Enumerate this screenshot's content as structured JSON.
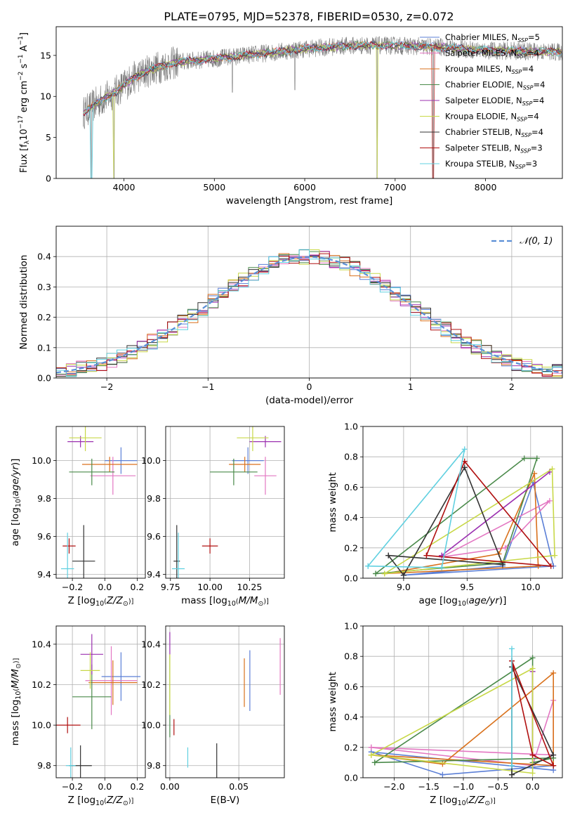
{
  "figure": {
    "title": "PLATE=0795, MJD=52378, FIBERID=0530, z=0.072"
  },
  "colors": {
    "series": [
      "#5b7fd6",
      "#e377c2",
      "#d9711c",
      "#4a8a4a",
      "#9b30b0",
      "#c8d848",
      "#333333",
      "#b01010",
      "#60d0e0"
    ],
    "gray_spectrum": "#7a7a7a",
    "grid": "#b0b0b0",
    "normal_curve": "#5b8fd6"
  },
  "chart_data": [
    {
      "id": "spectrum",
      "type": "line",
      "xlabel": "wavelength [Angstrom, rest frame]",
      "ylabel": "Flux [f",
      "xlim": [
        3250,
        8850
      ],
      "ylim": [
        0,
        18.5
      ],
      "xticks": [
        4000,
        5000,
        6000,
        7000,
        8000
      ],
      "yticks": [
        0,
        5,
        10,
        15
      ],
      "grid": false,
      "legend_position": "top-right",
      "legend": [
        "Chabrier MILES, N_SSP=5",
        "Salpeter MILES, N_SSP=4",
        "Kroupa MILES, N_SSP=4",
        "Chabrier ELODIE, N_SSP=4",
        "Salpeter ELODIE, N_SSP=4",
        "Kroupa ELODIE, N_SSP=4",
        "Chabrier STELIB, N_SSP=4",
        "Salpeter STELIB, N_SSP=3",
        "Kroupa STELIB, N_SSP=3"
      ],
      "continuum": {
        "x": [
          3550,
          3700,
          3900,
          4100,
          4300,
          4600,
          5000,
          5500,
          6000,
          6500,
          7000,
          7500,
          8000,
          8500,
          8850
        ],
        "y": [
          8,
          9.2,
          10.5,
          12.2,
          13.3,
          14.2,
          14.6,
          15.2,
          15.8,
          16.2,
          16.2,
          16.0,
          15.6,
          15.5,
          15.4
        ]
      },
      "noise_amplitude": 1.6,
      "dips": [
        {
          "x": 3640,
          "y": 0
        },
        {
          "x": 3890,
          "y": 0
        },
        {
          "x": 5200,
          "y": 10.5
        },
        {
          "x": 5890,
          "y": 10.8
        },
        {
          "x": 6800,
          "y": 0
        },
        {
          "x": 7420,
          "y": 0
        }
      ]
    },
    {
      "id": "residuals",
      "type": "step-histogram",
      "xlabel": "(data-model)/error",
      "ylabel": "Normed distribution",
      "xlim": [
        -2.5,
        2.5
      ],
      "ylim": [
        0,
        0.5
      ],
      "xticks": [
        -2,
        -1,
        0,
        1,
        2
      ],
      "yticks": [
        0.0,
        0.1,
        0.2,
        0.3,
        0.4
      ],
      "grid": true,
      "legend_position": "top-right",
      "legend": [
        "N(0,1)"
      ],
      "bin_width": 0.1
    },
    {
      "id": "z_age",
      "type": "errorbar",
      "xlabel": "Z [log10(Z/Z⊙)]",
      "ylabel": "age  [log10(age/yr)]",
      "xlim": [
        -0.3,
        0.25
      ],
      "ylim": [
        9.38,
        10.18
      ],
      "xticks": [
        -0.2,
        0.0,
        0.2
      ],
      "yticks": [
        9.4,
        9.6,
        9.8,
        10.0
      ],
      "grid": true,
      "points": [
        {
          "x": 0.1,
          "xerr": 0.1,
          "y": 10.0,
          "yerr": 0.07
        },
        {
          "x": 0.05,
          "xerr": 0.14,
          "y": 9.92,
          "yerr": 0.1
        },
        {
          "x": 0.03,
          "xerr": 0.17,
          "y": 9.98,
          "yerr": 0.04
        },
        {
          "x": -0.08,
          "xerr": 0.14,
          "y": 9.94,
          "yerr": 0.07
        },
        {
          "x": -0.15,
          "xerr": 0.08,
          "y": 10.1,
          "yerr": 0.03
        },
        {
          "x": -0.12,
          "xerr": 0.1,
          "y": 10.12,
          "yerr": 0.07
        },
        {
          "x": -0.13,
          "xerr": 0.07,
          "y": 9.47,
          "yerr": 0.19
        },
        {
          "x": -0.22,
          "xerr": 0.04,
          "y": 9.55,
          "yerr": 0.04
        },
        {
          "x": -0.23,
          "xerr": 0.04,
          "y": 9.43,
          "yerr": 0.19
        }
      ]
    },
    {
      "id": "mass_age",
      "type": "errorbar",
      "xlabel": "mass [log10(M/M⊙)]",
      "ylabel": "",
      "xlim": [
        9.72,
        10.47
      ],
      "ylim": [
        9.38,
        10.18
      ],
      "xticks": [
        9.75,
        10.0,
        10.25
      ],
      "yticks": [
        9.4,
        9.6,
        9.8,
        10.0
      ],
      "grid": true,
      "points": [
        {
          "x": 10.24,
          "xerr": 0.1,
          "y": 10.0,
          "yerr": 0.07
        },
        {
          "x": 10.35,
          "xerr": 0.07,
          "y": 9.92,
          "yerr": 0.1
        },
        {
          "x": 10.22,
          "xerr": 0.1,
          "y": 9.98,
          "yerr": 0.04
        },
        {
          "x": 10.15,
          "xerr": 0.15,
          "y": 9.94,
          "yerr": 0.07
        },
        {
          "x": 10.35,
          "xerr": 0.1,
          "y": 10.1,
          "yerr": 0.03
        },
        {
          "x": 10.27,
          "xerr": 0.1,
          "y": 10.12,
          "yerr": 0.07
        },
        {
          "x": 9.79,
          "xerr": 0.02,
          "y": 9.47,
          "yerr": 0.19
        },
        {
          "x": 10.0,
          "xerr": 0.05,
          "y": 9.55,
          "yerr": 0.04
        },
        {
          "x": 9.8,
          "xerr": 0.04,
          "y": 9.43,
          "yerr": 0.19
        }
      ]
    },
    {
      "id": "age_weight",
      "type": "line",
      "xlabel": "age  [log10(age/yr)]",
      "ylabel": "mass weight",
      "xlim": [
        8.68,
        10.25
      ],
      "ylim": [
        0.0,
        1.0
      ],
      "xticks": [
        9.0,
        9.5,
        10.0
      ],
      "yticks": [
        0.0,
        0.2,
        0.4,
        0.6,
        0.8,
        1.0
      ],
      "grid": true,
      "series": [
        {
          "x": [
            9.0,
            9.78,
            10.02,
            10.18,
            9.0
          ],
          "y": [
            0.02,
            0.08,
            0.63,
            0.08,
            0.02
          ]
        },
        {
          "x": [
            9.3,
            9.8,
            10.15,
            9.3
          ],
          "y": [
            0.14,
            0.2,
            0.51,
            0.14
          ]
        },
        {
          "x": [
            8.85,
            9.75,
            10.03,
            10.06,
            8.85
          ],
          "y": [
            0.03,
            0.16,
            0.69,
            0.08,
            0.03
          ]
        },
        {
          "x": [
            8.78,
            9.78,
            10.05,
            9.95,
            8.78
          ],
          "y": [
            0.03,
            0.1,
            0.79,
            0.79,
            0.03
          ]
        },
        {
          "x": [
            9.3,
            10.15,
            9.3
          ],
          "y": [
            0.15,
            0.7,
            0.15
          ]
        },
        {
          "x": [
            8.85,
            10.17,
            10.19,
            8.85
          ],
          "y": [
            0.03,
            0.72,
            0.15,
            0.03
          ]
        },
        {
          "x": [
            8.88,
            9.0,
            9.48,
            9.78,
            8.88
          ],
          "y": [
            0.15,
            0.02,
            0.73,
            0.09,
            0.15
          ]
        },
        {
          "x": [
            9.18,
            9.48,
            10.16,
            9.18
          ],
          "y": [
            0.15,
            0.77,
            0.08,
            0.15
          ]
        },
        {
          "x": [
            8.72,
            9.3,
            9.48,
            8.72
          ],
          "y": [
            0.08,
            0.07,
            0.85,
            0.08
          ]
        }
      ]
    },
    {
      "id": "z_mass",
      "type": "errorbar",
      "xlabel": "Z [log10(Z/Z⊙)]",
      "ylabel": "mass [log10(M/M⊙)]",
      "xlim": [
        -0.3,
        0.25
      ],
      "ylim": [
        9.74,
        10.49
      ],
      "xticks": [
        -0.2,
        0.0,
        0.2
      ],
      "yticks": [
        9.8,
        10.0,
        10.2,
        10.4
      ],
      "grid": true,
      "points": [
        {
          "x": 0.1,
          "xerr": 0.12,
          "y": 10.24,
          "yerr": 0.12
        },
        {
          "x": 0.04,
          "xerr": 0.16,
          "y": 10.22,
          "yerr": 0.17
        },
        {
          "x": 0.05,
          "xerr": 0.15,
          "y": 10.21,
          "yerr": 0.11
        },
        {
          "x": -0.08,
          "xerr": 0.12,
          "y": 10.14,
          "yerr": 0.16
        },
        {
          "x": -0.08,
          "xerr": 0.07,
          "y": 10.35,
          "yerr": 0.1
        },
        {
          "x": -0.09,
          "xerr": 0.06,
          "y": 10.27,
          "yerr": 0.09
        },
        {
          "x": -0.15,
          "xerr": 0.07,
          "y": 9.8,
          "yerr": 0.1
        },
        {
          "x": -0.23,
          "xerr": 0.08,
          "y": 10.0,
          "yerr": 0.04
        },
        {
          "x": -0.21,
          "xerr": 0.03,
          "y": 9.8,
          "yerr": 0.09
        }
      ]
    },
    {
      "id": "ebv_mass",
      "type": "errorbar",
      "xlabel": "E(B-V)",
      "ylabel": "",
      "xlim": [
        -0.003,
        0.083
      ],
      "ylim": [
        9.74,
        10.49
      ],
      "xticks": [
        0.0,
        0.05
      ],
      "yticks": [
        9.8,
        10.0,
        10.2,
        10.4
      ],
      "grid": true,
      "points": [
        {
          "x": 0.058,
          "xerr": 0,
          "y": 10.22,
          "yerr": 0.15
        },
        {
          "x": 0.08,
          "xerr": 0,
          "y": 10.29,
          "yerr": 0.14
        },
        {
          "x": 0.054,
          "xerr": 0,
          "y": 10.21,
          "yerr": 0.12
        },
        {
          "x": 0.0,
          "xerr": 0,
          "y": 10.14,
          "yerr": 0.2
        },
        {
          "x": 0.0,
          "xerr": 0,
          "y": 10.4,
          "yerr": 0.06
        },
        {
          "x": 0.0,
          "xerr": 0,
          "y": 10.2,
          "yerr": 0.15
        },
        {
          "x": 0.034,
          "xerr": 0,
          "y": 9.82,
          "yerr": 0.09
        },
        {
          "x": 0.003,
          "xerr": 0,
          "y": 9.99,
          "yerr": 0.04
        },
        {
          "x": 0.013,
          "xerr": 0,
          "y": 9.84,
          "yerr": 0.05
        }
      ]
    },
    {
      "id": "z_weight",
      "type": "line",
      "xlabel": "Z [log10(Z/Z⊙)]",
      "ylabel": "mass weight",
      "xlim": [
        -2.45,
        0.43
      ],
      "ylim": [
        0.0,
        1.0
      ],
      "xticks": [
        -2.0,
        -1.5,
        -1.0,
        -0.5,
        0.0
      ],
      "yticks": [
        0.0,
        0.2,
        0.4,
        0.6,
        0.8,
        1.0
      ],
      "grid": true,
      "series": [
        {
          "x": [
            -2.33,
            -1.3,
            0.3,
            0.3,
            -2.33
          ],
          "y": [
            0.17,
            0.02,
            0.08,
            0.05,
            0.17
          ]
        },
        {
          "x": [
            -2.33,
            0.3,
            0.3,
            0.0,
            -2.33
          ],
          "y": [
            0.2,
            0.15,
            0.51,
            0.08,
            0.2
          ]
        },
        {
          "x": [
            -2.33,
            -1.3,
            0.3,
            0.3,
            -2.33
          ],
          "y": [
            0.15,
            0.09,
            0.69,
            0.08,
            0.15
          ]
        },
        {
          "x": [
            -2.28,
            0.0,
            0.0,
            0.3,
            -2.28
          ],
          "y": [
            0.1,
            0.79,
            0.1,
            0.13,
            0.1
          ]
        },
        {
          "x": [
            0.0,
            0.0,
            0.0
          ],
          "y": [
            0.15,
            0.7,
            0.15
          ]
        },
        {
          "x": [
            -2.33,
            0.0,
            0.0,
            -2.33
          ],
          "y": [
            0.15,
            0.72,
            0.03,
            0.15
          ]
        },
        {
          "x": [
            -0.3,
            -0.3,
            0.3,
            -0.3
          ],
          "y": [
            0.02,
            0.73,
            0.15,
            0.02
          ]
        },
        {
          "x": [
            -0.3,
            0.0,
            0.3,
            -0.3
          ],
          "y": [
            0.77,
            0.15,
            0.08,
            0.77
          ]
        },
        {
          "x": [
            -0.3,
            -0.3,
            -0.3
          ],
          "y": [
            0.08,
            0.85,
            0.08
          ]
        }
      ]
    }
  ]
}
